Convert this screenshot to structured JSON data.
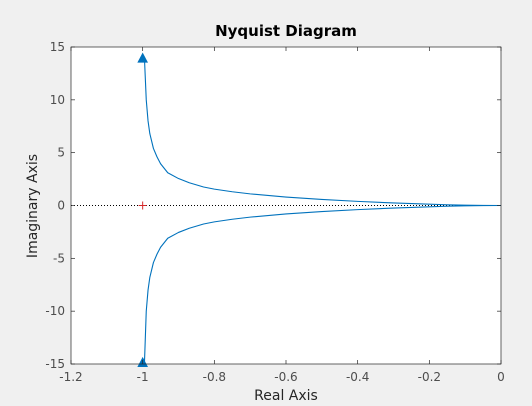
{
  "chart_data": {
    "type": "line",
    "title": "Nyquist Diagram",
    "xlabel": "Real Axis",
    "ylabel": "Imaginary Axis",
    "xlim": [
      -1.2,
      0
    ],
    "ylim": [
      -15,
      15
    ],
    "x_ticks": [
      -1.2,
      -1,
      -0.8,
      -0.6,
      -0.4,
      -0.2,
      0
    ],
    "x_tick_labels": [
      "-1.2",
      "-1",
      "-0.8",
      "-0.6",
      "-0.4",
      "-0.2",
      "0"
    ],
    "y_ticks": [
      -15,
      -10,
      -5,
      0,
      5,
      10,
      15
    ],
    "y_tick_labels": [
      "-15",
      "-10",
      "-5",
      "0",
      "5",
      "10",
      "15"
    ],
    "grid": false,
    "critical_point": {
      "x": -1,
      "y": 0,
      "marker": "+",
      "color": "#d62728"
    },
    "zero_line": {
      "y": 0,
      "style": "dotted",
      "color": "#000000"
    },
    "series": [
      {
        "color": "#0072bd",
        "x": [
          -0.995,
          -0.99,
          -0.985,
          -0.98,
          -0.97,
          -0.96,
          -0.95,
          -0.93,
          -0.9,
          -0.87,
          -0.83,
          -0.8,
          -0.75,
          -0.7,
          -0.6,
          -0.5,
          -0.4,
          -0.3,
          -0.2,
          -0.15,
          -0.1,
          -0.05,
          0
        ],
        "y": [
          13.9,
          10.0,
          8.0,
          6.8,
          5.4,
          4.6,
          3.95,
          3.1,
          2.55,
          2.15,
          1.75,
          1.55,
          1.3,
          1.1,
          0.8,
          0.57,
          0.39,
          0.24,
          0.12,
          0.07,
          0.03,
          0.01,
          0
        ]
      },
      {
        "color": "#0072bd",
        "x": [
          -0.995,
          -0.99,
          -0.985,
          -0.98,
          -0.97,
          -0.96,
          -0.95,
          -0.93,
          -0.9,
          -0.87,
          -0.83,
          -0.8,
          -0.75,
          -0.7,
          -0.6,
          -0.5,
          -0.4,
          -0.3,
          -0.2,
          -0.15,
          -0.1,
          -0.05,
          0
        ],
        "y": [
          -14.9,
          -10.0,
          -8.0,
          -6.8,
          -5.4,
          -4.6,
          -3.95,
          -3.1,
          -2.55,
          -2.15,
          -1.75,
          -1.55,
          -1.3,
          -1.1,
          -0.8,
          -0.57,
          -0.39,
          -0.24,
          -0.12,
          -0.07,
          -0.03,
          -0.01,
          0
        ]
      }
    ],
    "arrows": [
      {
        "x": -1,
        "y": 13.9,
        "direction": "up",
        "color": "#0072bd"
      },
      {
        "x": -1,
        "y": -14.9,
        "direction": "up",
        "color": "#0072bd"
      }
    ]
  }
}
